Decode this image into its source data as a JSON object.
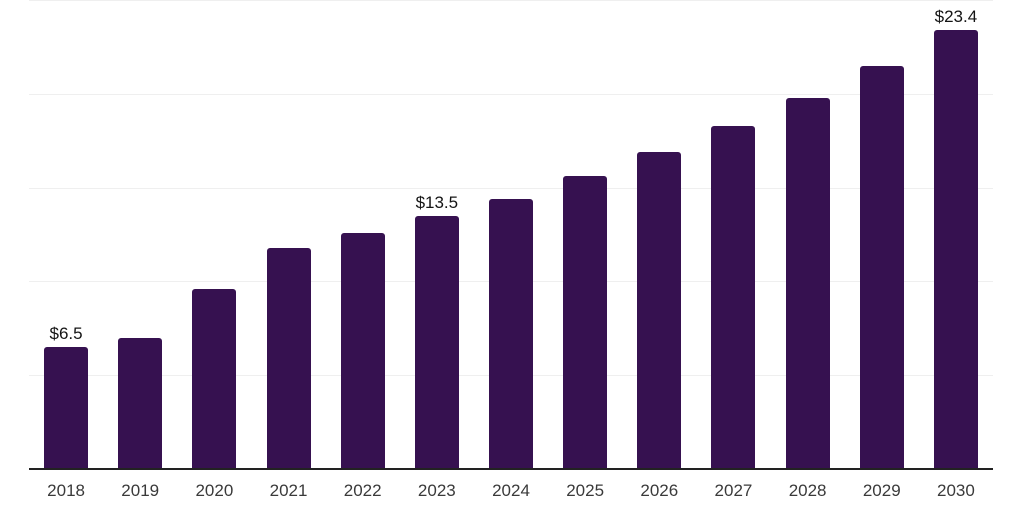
{
  "chart": {
    "background": "#ffffff",
    "colors": {
      "bar": "#361150",
      "axis_line": "#222222",
      "gridline": "#efefef",
      "tick_label": "#3a3a3a",
      "value_label": "#141414"
    }
  },
  "chart_data": {
    "type": "bar",
    "title": "",
    "xlabel": "",
    "ylabel": "",
    "categories": [
      "2018",
      "2019",
      "2020",
      "2021",
      "2022",
      "2023",
      "2024",
      "2025",
      "2026",
      "2027",
      "2028",
      "2029",
      "2030"
    ],
    "values": [
      6.5,
      7.0,
      9.6,
      11.8,
      12.6,
      13.5,
      14.4,
      15.6,
      16.9,
      18.3,
      19.8,
      21.5,
      23.4
    ],
    "data_labels": {
      "2018": "$6.5",
      "2023": "$13.5",
      "2030": "$23.4"
    },
    "ylim": [
      0,
      25
    ],
    "yticks": [
      5,
      10,
      15,
      20,
      25
    ],
    "y_tick_labels_visible": false,
    "grid": true,
    "legend": false
  }
}
